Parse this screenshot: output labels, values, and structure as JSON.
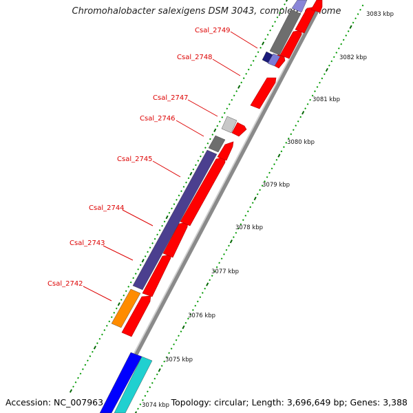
{
  "title": "Chromohalobacter salexigens DSM 3043, complete genome",
  "footer": {
    "accession": "Accession: NC_007963",
    "summary": "Topology: circular; Length: 3,696,649 bp; Genes: 3,388"
  },
  "scale": {
    "labels": [
      "3074 kbp",
      "3075 kbp",
      "3076 kbp",
      "3077 kbp",
      "3078 kbp",
      "3079 kbp",
      "3080 kbp",
      "3081 kbp",
      "3082 kbp",
      "3083 kbp"
    ],
    "colors": {
      "minor_tick": "#009900",
      "major_tick": "#006600"
    }
  },
  "genes": [
    {
      "name": "Csal_2742",
      "color": "#ff0000"
    },
    {
      "name": "Csal_2743",
      "color": "#ff0000"
    },
    {
      "name": "Csal_2744",
      "color": "#ff0000"
    },
    {
      "name": "Csal_2745",
      "color": "#ff0000"
    },
    {
      "name": "Csal_2746",
      "color": "#ff0000"
    },
    {
      "name": "Csal_2747",
      "color": "#ff0000"
    },
    {
      "name": "Csal_2748",
      "color": "#ff0000"
    },
    {
      "name": "Csal_2749",
      "color": "#ff0000"
    }
  ],
  "colors": {
    "cds": "#ff0000",
    "backbone": "#888888",
    "cog_purple": "#4b3f8f",
    "cog_gray": "#6e6e6e",
    "cog_lightgray": "#c8c8c8",
    "cog_orange": "#ff8c00",
    "cog_navy": "#1a1a7a",
    "cog_lavender": "#7b7bd6",
    "cog_blue": "#0000ff",
    "cog_cyan": "#20d0d0",
    "label": "#dd0000"
  }
}
